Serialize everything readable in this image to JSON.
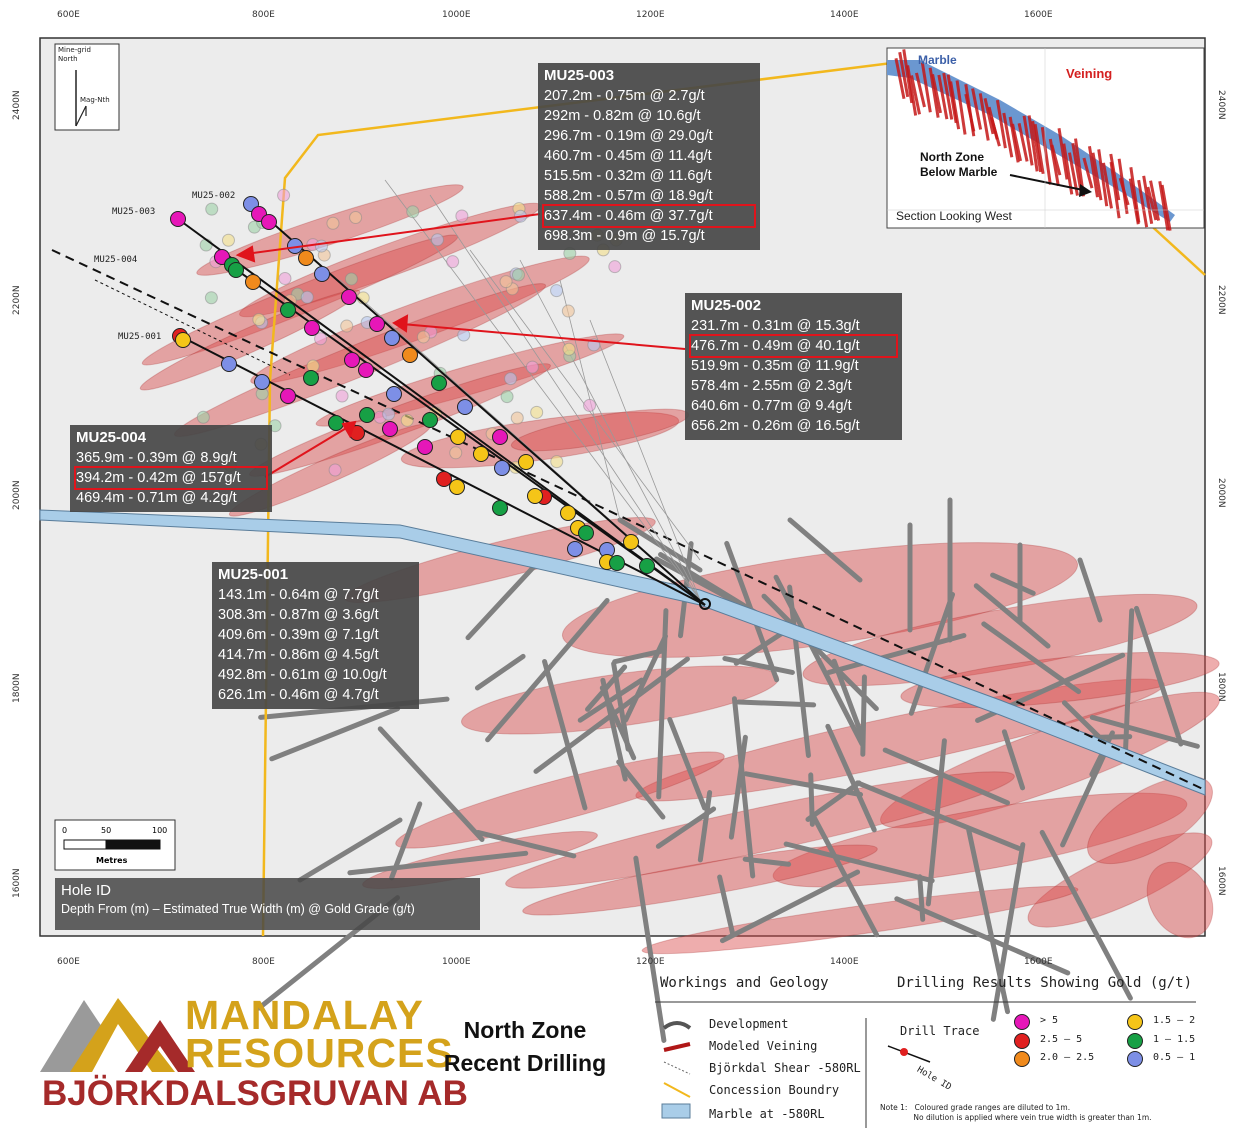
{
  "axes": {
    "x_ticks": [
      "600E",
      "800E",
      "1000E",
      "1200E",
      "1400E",
      "1600E"
    ],
    "y_ticks": [
      "2400N",
      "2200N",
      "2000N",
      "1800N",
      "1600N"
    ]
  },
  "north_arrow": {
    "mine_grid": "Mine-grid\nNorth",
    "mag": "Mag-Nth"
  },
  "scale_bar": {
    "ticks": [
      "0",
      "50",
      "100"
    ],
    "unit": "Metres"
  },
  "hole_labels": [
    "MU25-003",
    "MU25-002",
    "MU25-004",
    "MU25-001"
  ],
  "callouts": {
    "mu003": {
      "title": "MU25-003",
      "rows": [
        "207.2m - 0.75m @ 2.7g/t",
        "292m - 0.82m @ 10.6g/t",
        "296.7m - 0.19m @ 29.0g/t",
        "460.7m - 0.45m @ 11.4g/t",
        "515.5m - 0.32m @ 11.6g/t",
        "588.2m - 0.57m @ 18.9g/t",
        "637.4m - 0.46m @ 37.7g/t",
        "698.3m - 0.9m @ 15.7g/t"
      ],
      "highlight": 6
    },
    "mu002": {
      "title": "MU25-002",
      "rows": [
        "231.7m - 0.31m @ 15.3g/t",
        "476.7m - 0.49m @ 40.1g/t",
        "519.9m - 0.35m @ 11.9g/t",
        "578.4m - 2.55m @ 2.3g/t",
        "640.6m - 0.77m @ 9.4g/t",
        "656.2m - 0.26m @ 16.5g/t"
      ],
      "highlight": 1
    },
    "mu004": {
      "title": "MU25-004",
      "rows": [
        "365.9m - 0.39m @ 8.9g/t",
        "394.2m - 0.42m @ 157g/t",
        "469.4m - 0.71m @ 4.2g/t"
      ],
      "highlight": 1
    },
    "mu001": {
      "title": "MU25-001",
      "rows": [
        "143.1m - 0.64m @ 7.7g/t",
        "308.3m - 0.87m @ 3.6g/t",
        "409.6m - 0.39m @ 7.1g/t",
        "414.7m - 0.86m @ 4.5g/t",
        "492.8m - 0.61m @ 10.0g/t",
        "626.1m - 0.46m @ 4.7g/t"
      ],
      "highlight": -1
    }
  },
  "inset": {
    "marble": "Marble",
    "veining": "Veining",
    "north_zone": "North Zone\nBelow Marble",
    "section": "Section Looking West"
  },
  "hole_id_box": {
    "title": "Hole ID",
    "subtitle": "Depth From (m) – Estimated True Width (m) @ Gold Grade (g/t)"
  },
  "logo": {
    "line1": "MANDALAY",
    "line2": "RESOURCES",
    "line3": "BJÖRKDALSGRUVAN AB",
    "colors": {
      "gold": "#d4a21b",
      "red": "#a52a2a",
      "gray": "#9a9a9a"
    }
  },
  "figure_title": {
    "line1": "North Zone",
    "line2": "Recent Drilling"
  },
  "legend": {
    "workings_title": "Workings and Geology",
    "drilling_title": "Drilling Results Showing Gold (g/t)",
    "items": [
      "Development",
      "Modeled Veining",
      "Björkdal Shear -580RL",
      "Concession Boundry",
      "Marble at -580RL"
    ],
    "drill_trace": "Drill Trace",
    "hole_id": "Hole ID",
    "grades": [
      {
        "label": "> 5",
        "color": "#e617b8"
      },
      {
        "label": "2.5 – 5",
        "color": "#e02020"
      },
      {
        "label": "2.0 – 2.5",
        "color": "#f08a1c"
      },
      {
        "label": "1.5  – 2",
        "color": "#f5c518"
      },
      {
        "label": "1 – 1.5",
        "color": "#17a045"
      },
      {
        "label": "0.5 – 1",
        "color": "#7d8fe6"
      }
    ],
    "note": "Note 1:   Coloured grade ranges are diluted to 1m.\n              No dilution is applied where vein true width is greater than 1m."
  }
}
